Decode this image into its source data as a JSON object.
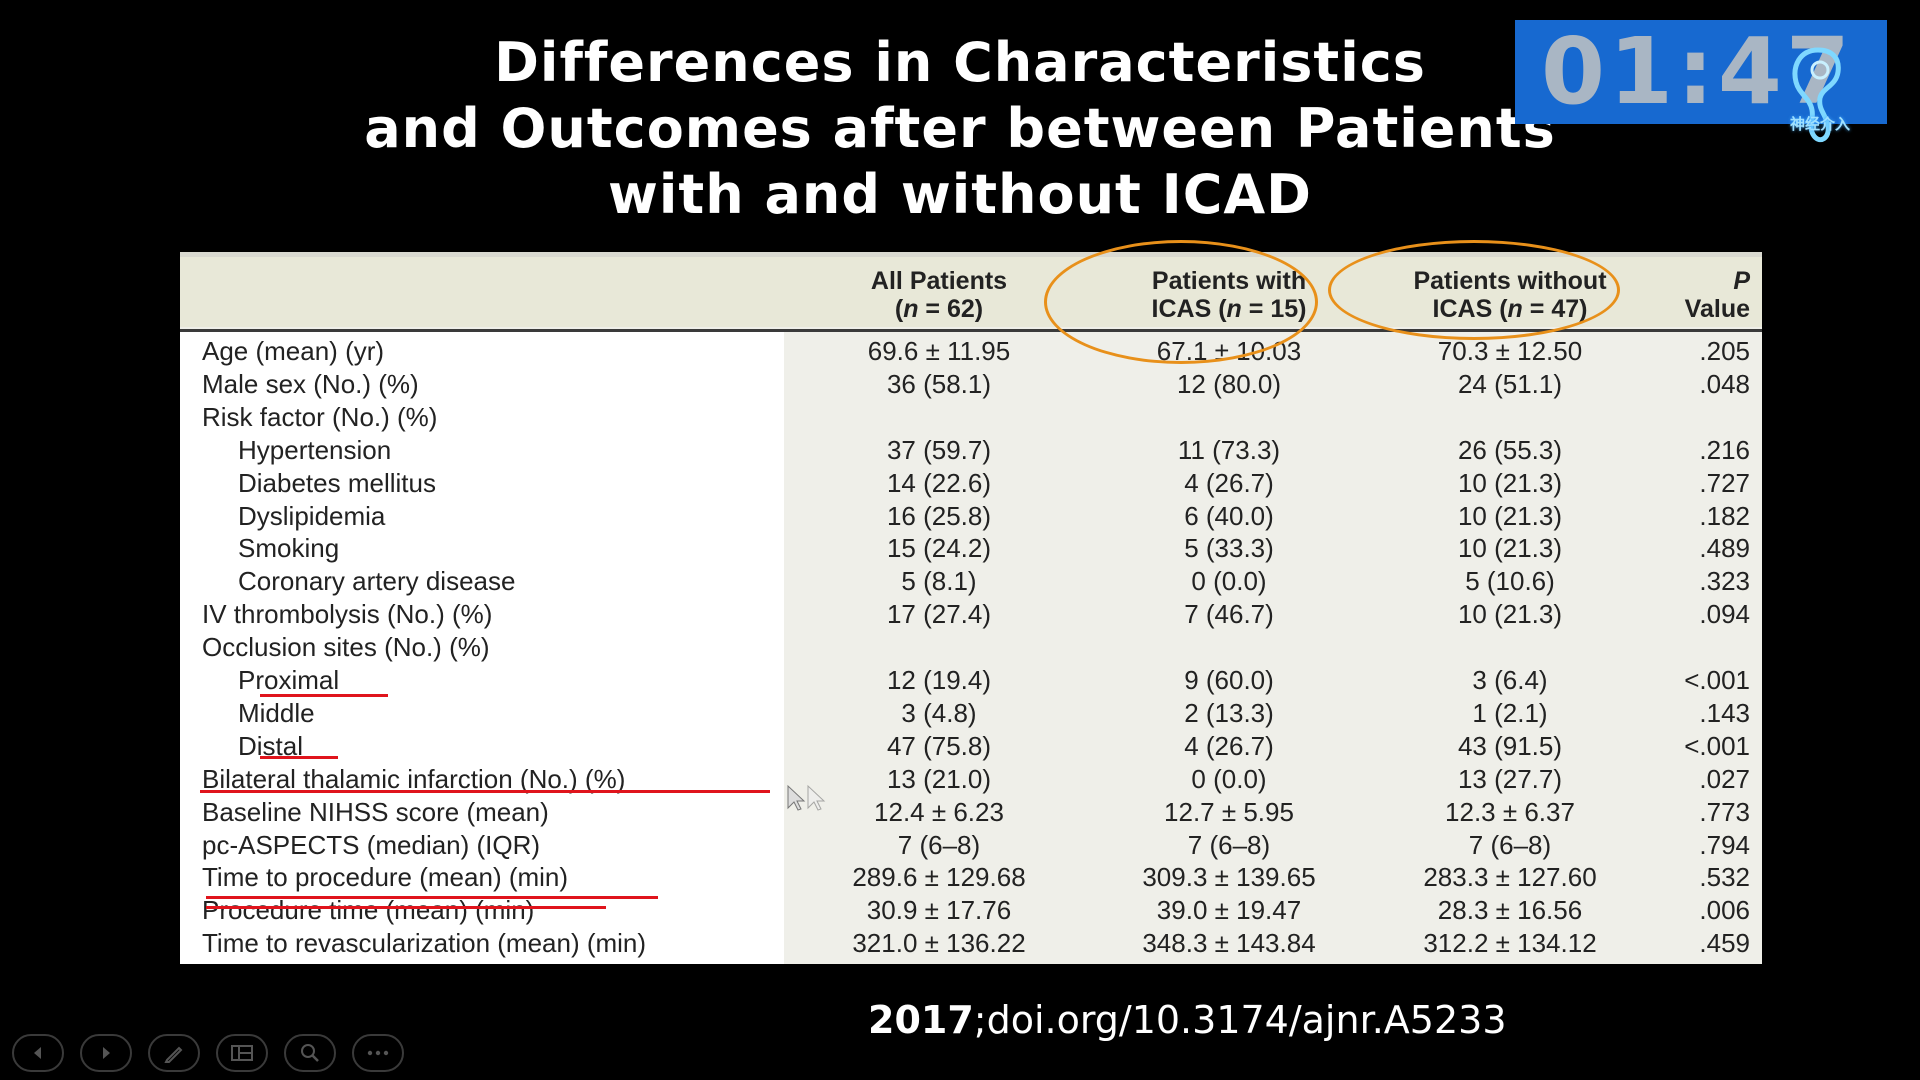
{
  "slide": {
    "title_lines": [
      "Differences in Characteristics",
      "and Outcomes after between Patients",
      "with and without ICAD"
    ],
    "citation_year": "2017",
    "citation_doi": ";doi.org/10.3174/ajnr.A5233"
  },
  "timer": {
    "display": "01:47"
  },
  "table": {
    "headers": [
      "",
      "All Patients\n(n = 62)",
      "Patients with\nICAS (n = 15)",
      "Patients without\nICAS (n = 47)",
      "P\nValue"
    ],
    "rows": [
      {
        "label": "Age (mean) (yr)",
        "all": "69.6 ± 11.95",
        "with": "67.1 ± 10.03",
        "without": "70.3 ± 12.50",
        "p": ".205"
      },
      {
        "label": "Male sex (No.) (%)",
        "all": "36 (58.1)",
        "with": "12 (80.0)",
        "without": "24 (51.1)",
        "p": ".048"
      },
      {
        "label": "Risk factor (No.) (%)",
        "all": "",
        "with": "",
        "without": "",
        "p": ""
      },
      {
        "label": "Hypertension",
        "all": "37 (59.7)",
        "with": "11 (73.3)",
        "without": "26 (55.3)",
        "p": ".216"
      },
      {
        "label": "Diabetes mellitus",
        "all": "14 (22.6)",
        "with": "4 (26.7)",
        "without": "10 (21.3)",
        "p": ".727"
      },
      {
        "label": "Dyslipidemia",
        "all": "16 (25.8)",
        "with": "6 (40.0)",
        "without": "10 (21.3)",
        "p": ".182"
      },
      {
        "label": "Smoking",
        "all": "15 (24.2)",
        "with": "5 (33.3)",
        "without": "10 (21.3)",
        "p": ".489"
      },
      {
        "label": "Coronary artery disease",
        "all": "5 (8.1)",
        "with": "0 (0.0)",
        "without": "5 (10.6)",
        "p": ".323"
      },
      {
        "label": "IV thrombolysis (No.) (%)",
        "all": "17 (27.4)",
        "with": "7 (46.7)",
        "without": "10 (21.3)",
        "p": ".094"
      },
      {
        "label": "Occlusion sites (No.) (%)",
        "all": "",
        "with": "",
        "without": "",
        "p": ""
      },
      {
        "label": "Proximal",
        "all": "12 (19.4)",
        "with": "9 (60.0)",
        "without": "3 (6.4)",
        "p": "<.001"
      },
      {
        "label": "Middle",
        "all": "3 (4.8)",
        "with": "2 (13.3)",
        "without": "1 (2.1)",
        "p": ".143"
      },
      {
        "label": "Distal",
        "all": "47 (75.8)",
        "with": "4 (26.7)",
        "without": "43 (91.5)",
        "p": "<.001"
      },
      {
        "label": "Bilateral thalamic infarction (No.) (%)",
        "all": "13 (21.0)",
        "with": "0 (0.0)",
        "without": "13 (27.7)",
        "p": ".027"
      },
      {
        "label": "Baseline NIHSS score (mean)",
        "all": "12.4 ± 6.23",
        "with": "12.7 ± 5.95",
        "without": "12.3 ± 6.37",
        "p": ".773"
      },
      {
        "label": "pc-ASPECTS (median) (IQR)",
        "all": "7 (6–8)",
        "with": "7 (6–8)",
        "without": "7 (6–8)",
        "p": ".794"
      },
      {
        "label": "Time to procedure (mean) (min)",
        "all": "289.6 ± 129.68",
        "with": "309.3 ± 139.65",
        "without": "283.3 ± 127.60",
        "p": ".532"
      },
      {
        "label": "Procedure time (mean) (min)",
        "all": "30.9 ± 17.76",
        "with": "39.0 ± 19.47",
        "without": "28.3 ± 16.56",
        "p": ".006"
      },
      {
        "label": "Time to revascularization (mean) (min)",
        "all": "321.0 ± 136.22",
        "with": "348.3 ± 143.84",
        "without": "312.2 ± 134.12",
        "p": ".459"
      }
    ]
  },
  "annotations": {
    "oval_color": "#e8901a",
    "underline_color": "#e0141c",
    "circled_columns": [
      "Patients with ICAS (n = 15)",
      "Patients without ICAS (n = 47)"
    ],
    "underlined_rows": [
      "Proximal",
      "Distal",
      "Bilateral thalamic infarction (No.) (%)",
      "Time to procedure (mean) (min)",
      "Procedure time (mean) (min)"
    ]
  },
  "controls": [
    {
      "icon": "previous-icon"
    },
    {
      "icon": "next-icon"
    },
    {
      "icon": "pen-icon"
    },
    {
      "icon": "slides-icon"
    },
    {
      "icon": "zoom-icon"
    },
    {
      "icon": "more-icon"
    }
  ],
  "colors": {
    "background": "#000000",
    "timer_bg": "#1769d0",
    "table_bg": "#efefe9"
  }
}
